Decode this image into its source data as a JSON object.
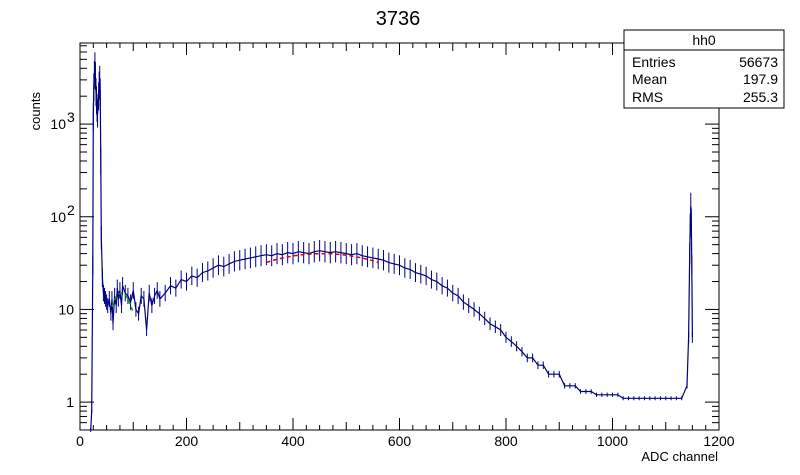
{
  "chart_data": {
    "type": "histogram",
    "title": "3736",
    "xlabel": "ADC channel",
    "ylabel": "counts",
    "xlim": [
      0,
      1200
    ],
    "ylim": [
      0.5,
      7500
    ],
    "yscale": "log",
    "x_ticks": [
      0,
      200,
      400,
      600,
      800,
      1000,
      1200
    ],
    "y_ticks": [
      {
        "value": 1,
        "label": "1"
      },
      {
        "value": 10,
        "label": "10"
      },
      {
        "value": 100,
        "label": "10",
        "exp": "2"
      },
      {
        "value": 1000,
        "label": "10",
        "exp": "3"
      }
    ],
    "series": [
      {
        "name": "hh0",
        "color": "#000080",
        "points": [
          [
            20,
            0.5
          ],
          [
            22,
            0.8
          ],
          [
            24,
            30
          ],
          [
            25,
            1200
          ],
          [
            26,
            2500
          ],
          [
            27,
            3400
          ],
          [
            28,
            4200
          ],
          [
            29,
            3300
          ],
          [
            30,
            2200
          ],
          [
            31,
            1800
          ],
          [
            32,
            1500
          ],
          [
            33,
            1300
          ],
          [
            35,
            2000
          ],
          [
            36,
            2600
          ],
          [
            37,
            3000
          ],
          [
            38,
            2200
          ],
          [
            39,
            400
          ],
          [
            40,
            60
          ],
          [
            42,
            22
          ],
          [
            44,
            15
          ],
          [
            46,
            14
          ],
          [
            48,
            13
          ],
          [
            50,
            12
          ],
          [
            52,
            11
          ],
          [
            55,
            13
          ],
          [
            58,
            9
          ],
          [
            60,
            13
          ],
          [
            62,
            7
          ],
          [
            65,
            14
          ],
          [
            68,
            11
          ],
          [
            70,
            17
          ],
          [
            72,
            13
          ],
          [
            75,
            16
          ],
          [
            78,
            11
          ],
          [
            80,
            18
          ],
          [
            85,
            15
          ],
          [
            90,
            14
          ],
          [
            95,
            12
          ],
          [
            100,
            16
          ],
          [
            105,
            10
          ],
          [
            110,
            9
          ],
          [
            115,
            14
          ],
          [
            120,
            13
          ],
          [
            125,
            6
          ],
          [
            130,
            15
          ],
          [
            135,
            11
          ],
          [
            140,
            14
          ],
          [
            145,
            16
          ],
          [
            150,
            13
          ],
          [
            160,
            15
          ],
          [
            170,
            18
          ],
          [
            180,
            17
          ],
          [
            190,
            21
          ],
          [
            200,
            20
          ],
          [
            210,
            23
          ],
          [
            220,
            22
          ],
          [
            230,
            25
          ],
          [
            240,
            26
          ],
          [
            250,
            28
          ],
          [
            260,
            30
          ],
          [
            270,
            29
          ],
          [
            280,
            31
          ],
          [
            290,
            33
          ],
          [
            300,
            34
          ],
          [
            310,
            35
          ],
          [
            320,
            36
          ],
          [
            330,
            37
          ],
          [
            340,
            38
          ],
          [
            350,
            39
          ],
          [
            360,
            38
          ],
          [
            370,
            40
          ],
          [
            380,
            39
          ],
          [
            390,
            41
          ],
          [
            400,
            40
          ],
          [
            410,
            42
          ],
          [
            420,
            41
          ],
          [
            430,
            40
          ],
          [
            440,
            42
          ],
          [
            450,
            43
          ],
          [
            460,
            42
          ],
          [
            470,
            41
          ],
          [
            480,
            42
          ],
          [
            490,
            41
          ],
          [
            500,
            40
          ],
          [
            510,
            39
          ],
          [
            520,
            40
          ],
          [
            530,
            38
          ],
          [
            540,
            37
          ],
          [
            550,
            36
          ],
          [
            560,
            35
          ],
          [
            570,
            34
          ],
          [
            580,
            32
          ],
          [
            590,
            31
          ],
          [
            600,
            30
          ],
          [
            610,
            28
          ],
          [
            620,
            27
          ],
          [
            630,
            25
          ],
          [
            640,
            24
          ],
          [
            650,
            23
          ],
          [
            660,
            21
          ],
          [
            670,
            20
          ],
          [
            680,
            18
          ],
          [
            690,
            17
          ],
          [
            700,
            15
          ],
          [
            710,
            14
          ],
          [
            720,
            12
          ],
          [
            730,
            11
          ],
          [
            740,
            10
          ],
          [
            750,
            9
          ],
          [
            760,
            8
          ],
          [
            770,
            7
          ],
          [
            780,
            6.5
          ],
          [
            790,
            6
          ],
          [
            800,
            5
          ],
          [
            810,
            4.5
          ],
          [
            820,
            4
          ],
          [
            830,
            3.5
          ],
          [
            840,
            3
          ],
          [
            850,
            3
          ],
          [
            860,
            2.5
          ],
          [
            870,
            2.5
          ],
          [
            880,
            2
          ],
          [
            890,
            2
          ],
          [
            900,
            2
          ],
          [
            910,
            1.5
          ],
          [
            920,
            1.5
          ],
          [
            930,
            1.5
          ],
          [
            940,
            1.3
          ],
          [
            950,
            1.3
          ],
          [
            960,
            1.3
          ],
          [
            970,
            1.2
          ],
          [
            980,
            1.2
          ],
          [
            990,
            1.2
          ],
          [
            1000,
            1.2
          ],
          [
            1010,
            1.2
          ],
          [
            1020,
            1.1
          ],
          [
            1030,
            1.1
          ],
          [
            1040,
            1.1
          ],
          [
            1050,
            1.1
          ],
          [
            1060,
            1.1
          ],
          [
            1070,
            1.1
          ],
          [
            1080,
            1.1
          ],
          [
            1090,
            1.1
          ],
          [
            1100,
            1.1
          ],
          [
            1110,
            1.1
          ],
          [
            1120,
            1.1
          ],
          [
            1130,
            1.1
          ],
          [
            1140,
            1.5
          ],
          [
            1143,
            5
          ],
          [
            1145,
            40
          ],
          [
            1146,
            80
          ],
          [
            1147,
            130
          ],
          [
            1148,
            90
          ],
          [
            1149,
            30
          ],
          [
            1150,
            5
          ]
        ]
      }
    ],
    "fits": [
      {
        "color": "#00aa00",
        "style": "dashed",
        "x": [
          60,
          100
        ],
        "gauss": {
          "amp": 15,
          "mean": 78,
          "sigma": 22
        }
      },
      {
        "color": "#dd0000",
        "style": "dashed",
        "x": [
          350,
          560
        ],
        "gauss": {
          "amp": 40,
          "mean": 455,
          "sigma": 160
        }
      }
    ],
    "grid": false,
    "stats_box": {
      "name": "hh0",
      "rows": [
        {
          "label": "Entries",
          "value": "56673"
        },
        {
          "label": "Mean",
          "value": "197.9"
        },
        {
          "label": "RMS",
          "value": "255.3"
        }
      ]
    }
  }
}
